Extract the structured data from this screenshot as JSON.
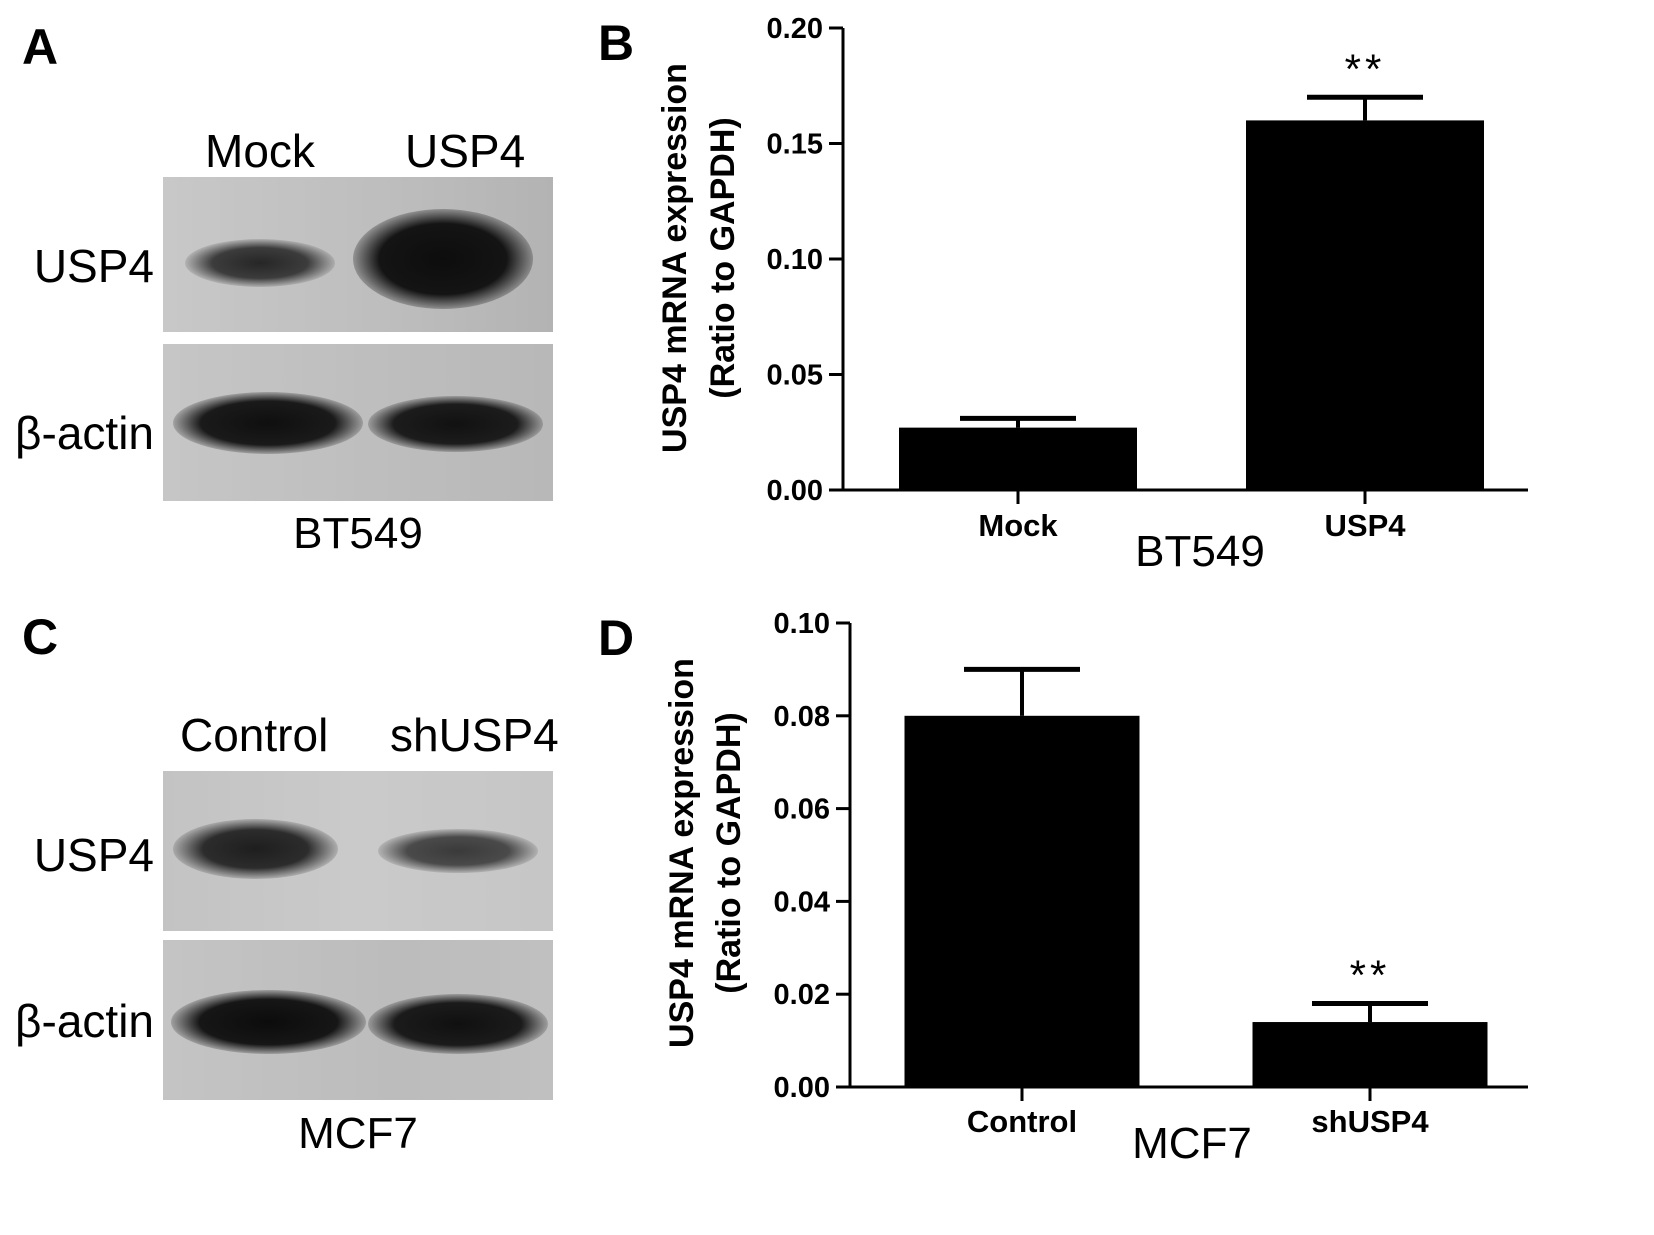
{
  "panels": {
    "A": {
      "letter": "A",
      "lanes": [
        "Mock",
        "USP4"
      ],
      "rows": [
        "USP4",
        "β-actin"
      ],
      "cell_line": "BT549"
    },
    "C": {
      "letter": "C",
      "lanes": [
        "Control",
        "shUSP4"
      ],
      "rows": [
        "USP4",
        "β-actin"
      ],
      "cell_line": "MCF7"
    }
  },
  "colors": {
    "bar": "#000000",
    "blot_background": "#c9c9c9",
    "band": "#111111"
  },
  "chart_data": [
    {
      "panel_letter": "B",
      "type": "bar",
      "categories": [
        "Mock",
        "USP4"
      ],
      "values": [
        0.027,
        0.16
      ],
      "errors": [
        0.004,
        0.01
      ],
      "significance": [
        "",
        "**"
      ],
      "ylabel_line1": "USP4 mRNA expression",
      "ylabel_line2": "(Ratio to GAPDH)",
      "xlabel": "BT549",
      "ylim": [
        0,
        0.2
      ],
      "yticks": [
        "0.00",
        "0.05",
        "0.10",
        "0.15",
        "0.20"
      ],
      "grid": false
    },
    {
      "panel_letter": "D",
      "type": "bar",
      "categories": [
        "Control",
        "shUSP4"
      ],
      "values": [
        0.08,
        0.014
      ],
      "errors": [
        0.01,
        0.004
      ],
      "significance": [
        "",
        "**"
      ],
      "ylabel_line1": "USP4 mRNA expression",
      "ylabel_line2": "(Ratio to GAPDH)",
      "xlabel": "MCF7",
      "ylim": [
        0,
        0.1
      ],
      "yticks": [
        "0.00",
        "0.02",
        "0.04",
        "0.06",
        "0.08",
        "0.10"
      ],
      "grid": false
    }
  ]
}
